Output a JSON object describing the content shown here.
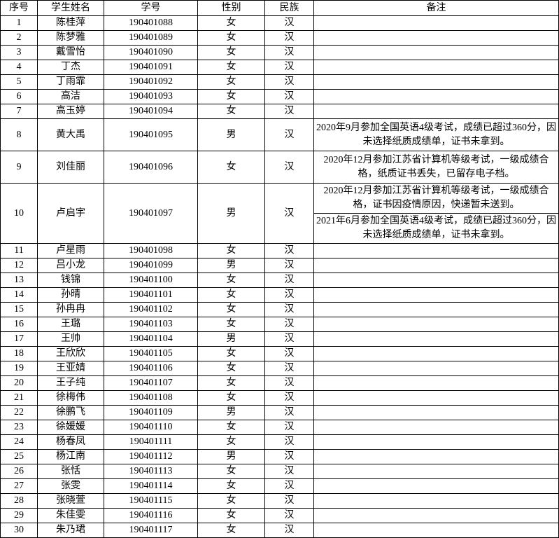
{
  "table": {
    "header": [
      "序号",
      "学生姓名",
      "学号",
      "性别",
      "民族",
      "备注"
    ],
    "rows": [
      [
        "1",
        "陈桂萍",
        "190401088",
        "女",
        "汉",
        []
      ],
      [
        "2",
        "陈梦雅",
        "190401089",
        "女",
        "汉",
        []
      ],
      [
        "3",
        "戴雪怡",
        "190401090",
        "女",
        "汉",
        []
      ],
      [
        "4",
        "丁杰",
        "190401091",
        "女",
        "汉",
        []
      ],
      [
        "5",
        "丁雨霏",
        "190401092",
        "女",
        "汉",
        []
      ],
      [
        "6",
        "高洁",
        "190401093",
        "女",
        "汉",
        []
      ],
      [
        "7",
        "高玉婷",
        "190401094",
        "女",
        "汉",
        []
      ],
      [
        "8",
        "黄大禹",
        "190401095",
        "男",
        "汉",
        [
          "2020年9月参加全国英语4级考试，成绩已超过360分，因未选择纸质成绩单，证书未拿到。"
        ]
      ],
      [
        "9",
        "刘佳丽",
        "190401096",
        "女",
        "汉",
        [
          "2020年12月参加江苏省计算机等级考试，一级成绩合格，纸质证书丢失，已留存电子档。"
        ]
      ],
      [
        "10",
        "卢启宇",
        "190401097",
        "男",
        "汉",
        [
          "2020年12月参加江苏省计算机等级考试，一级成绩合格，证书因疫情原因，快递暂未送到。",
          "2021年6月参加全国英语4级考试，成绩已超过360分，因未选择纸质成绩单，证书未拿到。"
        ]
      ],
      [
        "11",
        "卢星雨",
        "190401098",
        "女",
        "汉",
        []
      ],
      [
        "12",
        "吕小龙",
        "190401099",
        "男",
        "汉",
        []
      ],
      [
        "13",
        "钱锦",
        "190401100",
        "女",
        "汉",
        []
      ],
      [
        "14",
        "孙晴",
        "190401101",
        "女",
        "汉",
        []
      ],
      [
        "15",
        "孙冉冉",
        "190401102",
        "女",
        "汉",
        []
      ],
      [
        "16",
        "王璐",
        "190401103",
        "女",
        "汉",
        []
      ],
      [
        "17",
        "王帅",
        "190401104",
        "男",
        "汉",
        []
      ],
      [
        "18",
        "王欣欣",
        "190401105",
        "女",
        "汉",
        []
      ],
      [
        "19",
        "王亚婧",
        "190401106",
        "女",
        "汉",
        []
      ],
      [
        "20",
        "王子纯",
        "190401107",
        "女",
        "汉",
        []
      ],
      [
        "21",
        "徐梅伟",
        "190401108",
        "女",
        "汉",
        []
      ],
      [
        "22",
        "徐鹏飞",
        "190401109",
        "男",
        "汉",
        []
      ],
      [
        "23",
        "徐媛媛",
        "190401110",
        "女",
        "汉",
        []
      ],
      [
        "24",
        "杨春凤",
        "190401111",
        "女",
        "汉",
        []
      ],
      [
        "25",
        "杨江南",
        "190401112",
        "男",
        "汉",
        []
      ],
      [
        "26",
        "张恬",
        "190401113",
        "女",
        "汉",
        []
      ],
      [
        "27",
        "张雯",
        "190401114",
        "女",
        "汉",
        []
      ],
      [
        "28",
        "张晓萱",
        "190401115",
        "女",
        "汉",
        []
      ],
      [
        "29",
        "朱佳雯",
        "190401116",
        "女",
        "汉",
        []
      ],
      [
        "30",
        "朱乃珺",
        "190401117",
        "女",
        "汉",
        []
      ]
    ]
  }
}
